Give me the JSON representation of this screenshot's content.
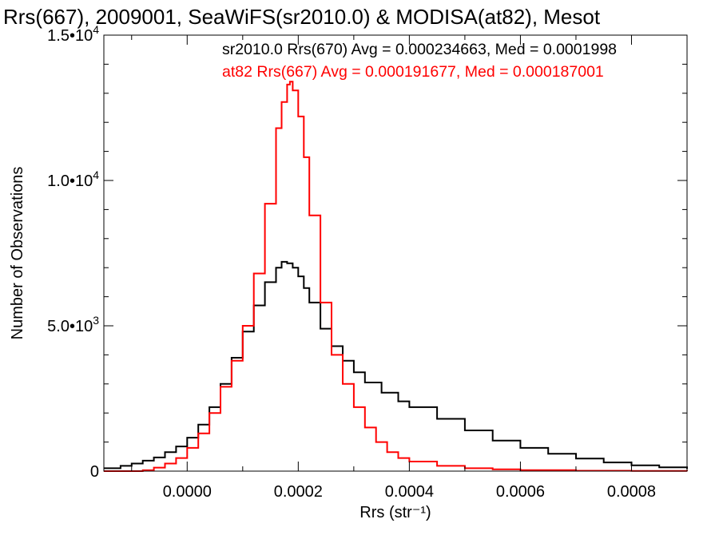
{
  "chart_data": {
    "type": "histogram",
    "title": "Rrs(667), 2009001, SeaWiFS(sr2010.0) & MODISA(at82), Mesot",
    "xlabel": "Rrs (str⁻¹)",
    "ylabel": "Number of Observations",
    "xlim": [
      -0.00015,
      0.0009
    ],
    "ylim": [
      0,
      15000
    ],
    "x_ticks": [
      0.0,
      0.0002,
      0.0004,
      0.0006,
      0.0008
    ],
    "x_tick_labels": [
      "0.0000",
      "0.0002",
      "0.0004",
      "0.0006",
      "0.0008"
    ],
    "y_ticks": [
      0,
      5000,
      10000,
      15000
    ],
    "y_tick_labels": [
      {
        "mantissa": "0",
        "exponent": ""
      },
      {
        "mantissa": "5.0•10",
        "exponent": "3"
      },
      {
        "mantissa": "1.0•10",
        "exponent": "4"
      },
      {
        "mantissa": "1.5•10",
        "exponent": "4"
      }
    ],
    "grid": false,
    "legend_position": "top-right",
    "series": [
      {
        "name": "sr2010.0 Rrs(670) Avg = 0.000234663, Med = 0.0001998",
        "color": "#000000",
        "x": [
          -0.00015,
          -0.00012,
          -0.0001,
          -8e-05,
          -6e-05,
          -4e-05,
          -2e-05,
          0.0,
          2e-05,
          4e-05,
          6e-05,
          8e-05,
          0.0001,
          0.00012,
          0.00014,
          0.00016,
          0.00017,
          0.00018,
          0.00019,
          0.0002,
          0.00021,
          0.00022,
          0.00024,
          0.00026,
          0.00028,
          0.0003,
          0.00032,
          0.00035,
          0.00038,
          0.0004,
          0.00045,
          0.0005,
          0.00055,
          0.0006,
          0.00065,
          0.0007,
          0.00075,
          0.0008,
          0.00085,
          0.0009
        ],
        "y": [
          100,
          180,
          260,
          360,
          470,
          650,
          850,
          1150,
          1600,
          2200,
          3000,
          3900,
          4800,
          5700,
          6500,
          7000,
          7200,
          7150,
          7000,
          6700,
          6300,
          5800,
          4900,
          4300,
          3800,
          3400,
          3050,
          2700,
          2400,
          2200,
          1800,
          1400,
          1050,
          800,
          600,
          430,
          300,
          200,
          130,
          80
        ]
      },
      {
        "name": "at82 Rrs(667) Avg = 0.000191677, Med = 0.000187001",
        "color": "#ff0000",
        "x": [
          -0.00015,
          -0.0001,
          -8e-05,
          -6e-05,
          -4e-05,
          -2e-05,
          0.0,
          2e-05,
          4e-05,
          6e-05,
          8e-05,
          0.0001,
          0.00012,
          0.00014,
          0.00016,
          0.00017,
          0.00018,
          0.000185,
          0.00019,
          0.0002,
          0.00021,
          0.00022,
          0.00024,
          0.00026,
          0.00028,
          0.0003,
          0.00032,
          0.00034,
          0.00036,
          0.00038,
          0.0004,
          0.00045,
          0.0005,
          0.00055,
          0.0006,
          0.0007,
          0.0008,
          0.0009
        ],
        "y": [
          0,
          0,
          30,
          120,
          260,
          450,
          800,
          1300,
          2000,
          2900,
          3800,
          5000,
          6800,
          9200,
          11800,
          12700,
          13300,
          13400,
          13100,
          12200,
          10800,
          8800,
          5800,
          4000,
          3000,
          2200,
          1500,
          1000,
          650,
          450,
          330,
          180,
          100,
          60,
          35,
          15,
          5,
          0
        ]
      }
    ]
  }
}
